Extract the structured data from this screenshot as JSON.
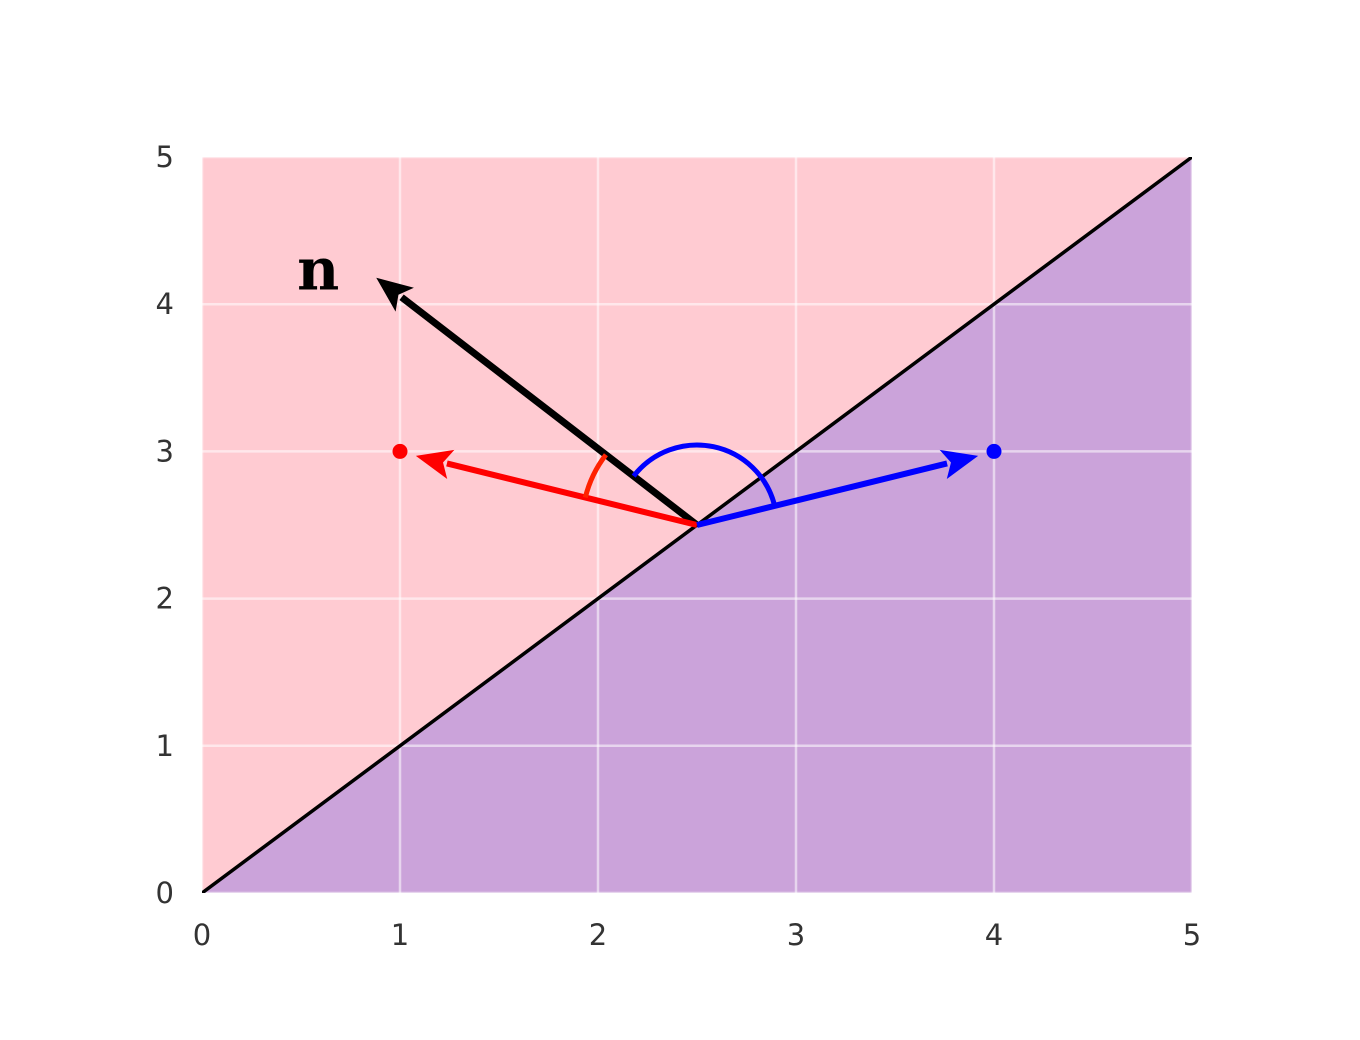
{
  "chart_data": {
    "type": "scatter",
    "title": "",
    "xlabel": "",
    "ylabel": "",
    "xlim": [
      0,
      5
    ],
    "ylim": [
      0,
      5
    ],
    "grid": true,
    "x_ticks": [
      "0",
      "1",
      "2",
      "3",
      "4",
      "5"
    ],
    "y_ticks": [
      "0",
      "1",
      "2",
      "3",
      "4",
      "5"
    ],
    "decision_boundary": {
      "x": [
        0,
        5
      ],
      "y": [
        0,
        5
      ]
    },
    "regions": [
      {
        "side": "above-line",
        "color": "#ffcbd2"
      },
      {
        "side": "below-line",
        "color": "#cba3da"
      }
    ],
    "points": [
      {
        "x": 1,
        "y": 3,
        "color": "#ff0000"
      },
      {
        "x": 4,
        "y": 3,
        "color": "#0000ff"
      }
    ],
    "vectors": [
      {
        "label": "n",
        "from": [
          2.5,
          2.5
        ],
        "to": [
          0.88,
          4.18
        ],
        "color": "#000000"
      },
      {
        "label": "",
        "from": [
          2.5,
          2.5
        ],
        "to": [
          1.08,
          2.97
        ],
        "color": "#ff0000"
      },
      {
        "label": "",
        "from": [
          2.5,
          2.5
        ],
        "to": [
          3.92,
          2.97
        ],
        "color": "#0000ff"
      }
    ],
    "angle_arcs": [
      {
        "between": [
          "n",
          "red-vector"
        ],
        "color": "#ff2200"
      },
      {
        "between": [
          "n",
          "blue-vector"
        ],
        "color": "#0000ff"
      }
    ]
  }
}
